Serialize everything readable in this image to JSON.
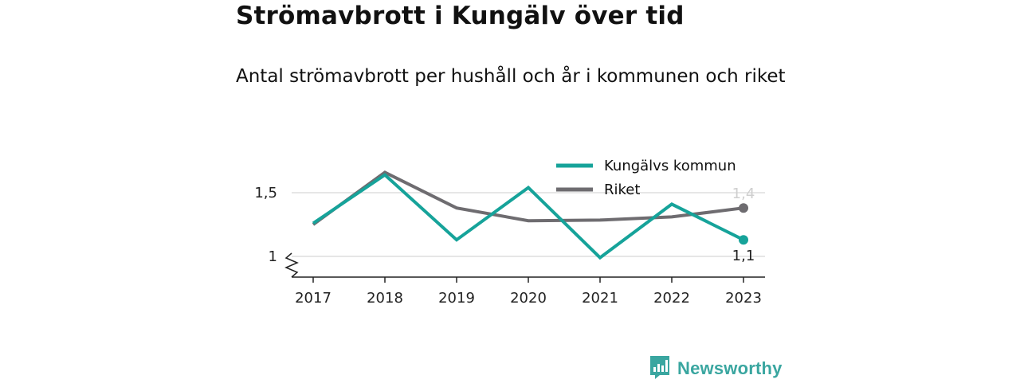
{
  "header": {
    "title": "Strömavbrott i Kungälv över tid",
    "subtitle": "Antal strömavbrott per hushåll och år i kommunen och riket"
  },
  "brand": {
    "name": "Newsworthy",
    "icon": "bar-chart-speech-bubble-icon",
    "color": "#3aa6a0"
  },
  "chart_data": {
    "type": "line",
    "x": [
      "2017",
      "2018",
      "2019",
      "2020",
      "2021",
      "2022",
      "2023"
    ],
    "yticks": [
      {
        "value": 1,
        "label": "1"
      },
      {
        "value": 1.5,
        "label": "1,5"
      }
    ],
    "ylim": [
      0.84,
      1.7
    ],
    "y_axis_break": true,
    "grid": true,
    "legend_position": "top-right",
    "series": [
      {
        "name": "Kungälvs kommun",
        "color": "#16a39a",
        "values": [
          1.26,
          1.64,
          1.13,
          1.54,
          0.99,
          1.41,
          1.13
        ],
        "end_label": "1,1"
      },
      {
        "name": "Riket",
        "color": "#6e6c70",
        "values": [
          1.25,
          1.66,
          1.38,
          1.28,
          1.285,
          1.31,
          1.38
        ],
        "end_label": "1,4"
      }
    ]
  }
}
